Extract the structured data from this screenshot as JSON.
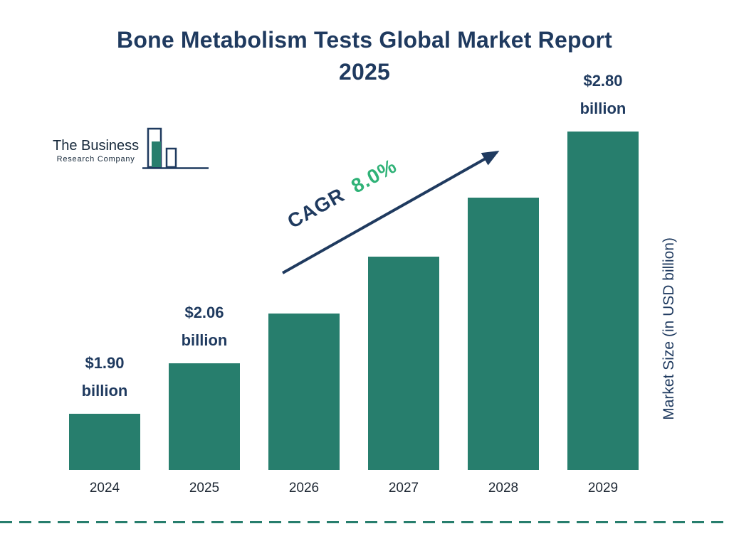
{
  "page": {
    "title_line1": "Bone Metabolism Tests Global Market Report",
    "title_line2": "2025"
  },
  "logo": {
    "name_line1": "The Business",
    "name_line2": "Research Company"
  },
  "annotations": {
    "cagr_label": "CAGR",
    "cagr_value": "8.0%"
  },
  "axis": {
    "y_title": "Market Size (in USD billion)"
  },
  "chart_data": {
    "type": "bar",
    "title": "Bone Metabolism Tests Global Market Report 2025",
    "categories": [
      "2024",
      "2025",
      "2026",
      "2027",
      "2028",
      "2029"
    ],
    "values": [
      1.9,
      2.06,
      2.22,
      2.4,
      2.59,
      2.8
    ],
    "bar_labels": [
      {
        "category": "2024",
        "line1": "$1.90",
        "line2": "billion"
      },
      {
        "category": "2025",
        "line1": "$2.06",
        "line2": "billion"
      },
      {
        "category": "2029",
        "line1": "$2.80",
        "line2": "billion"
      }
    ],
    "xlabel": "",
    "ylabel": "Market Size (in USD billion)",
    "ylim": [
      1.72,
      2.8
    ],
    "grid": false,
    "legend": false,
    "cagr": "8.0%",
    "bar_color": "#277e6d",
    "accent_navy": "#1f3a5f",
    "accent_green": "#2fb277"
  }
}
